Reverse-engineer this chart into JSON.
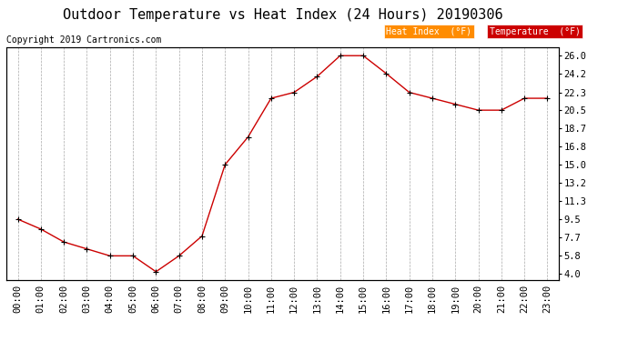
{
  "title": "Outdoor Temperature vs Heat Index (24 Hours) 20190306",
  "copyright": "Copyright 2019 Cartronics.com",
  "hours": [
    "00:00",
    "01:00",
    "02:00",
    "03:00",
    "04:00",
    "05:00",
    "06:00",
    "07:00",
    "08:00",
    "09:00",
    "10:00",
    "11:00",
    "12:00",
    "13:00",
    "14:00",
    "15:00",
    "16:00",
    "17:00",
    "18:00",
    "19:00",
    "20:00",
    "21:00",
    "22:00",
    "23:00"
  ],
  "temperature": [
    9.5,
    8.5,
    7.2,
    6.5,
    5.8,
    5.8,
    4.2,
    5.8,
    7.8,
    15.0,
    17.8,
    21.7,
    22.3,
    23.9,
    26.0,
    26.0,
    24.2,
    22.3,
    21.7,
    21.1,
    20.5,
    20.5,
    21.7,
    21.7
  ],
  "heat_index": [
    9.5,
    8.5,
    7.2,
    6.5,
    5.8,
    5.8,
    4.2,
    5.8,
    7.8,
    15.0,
    17.8,
    21.7,
    22.3,
    23.9,
    26.0,
    26.0,
    24.2,
    22.3,
    21.7,
    21.1,
    20.5,
    20.5,
    21.7,
    21.7
  ],
  "line_color": "#cc0000",
  "marker": "+",
  "background_color": "#ffffff",
  "grid_color": "#aaaaaa",
  "yticks": [
    4.0,
    5.8,
    7.7,
    9.5,
    11.3,
    13.2,
    15.0,
    16.8,
    18.7,
    20.5,
    22.3,
    24.2,
    26.0
  ],
  "ylim": [
    3.4,
    26.8
  ],
  "legend_heat_index_bg": "#ff8c00",
  "legend_temp_bg": "#cc0000",
  "legend_text_color": "#ffffff",
  "title_fontsize": 11,
  "copyright_fontsize": 7,
  "tick_fontsize": 7.5
}
